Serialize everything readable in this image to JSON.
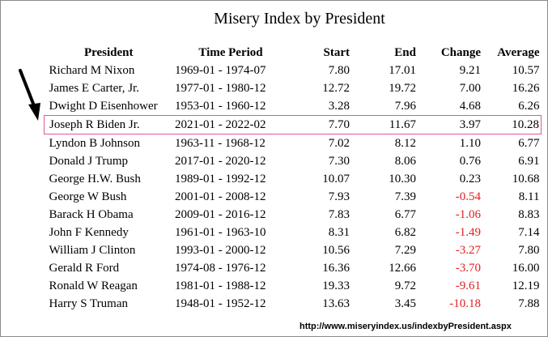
{
  "chart_data": {
    "type": "table",
    "title": "Misery Index by President",
    "columns": [
      "President",
      "Time Period",
      "Start",
      "End",
      "Change",
      "Average"
    ],
    "rows": [
      {
        "president": "Richard M Nixon",
        "period": "1969-01 - 1974-07",
        "start": "7.80",
        "end": "17.01",
        "change": "9.21",
        "average": "10.57"
      },
      {
        "president": "James E Carter, Jr.",
        "period": "1977-01 - 1980-12",
        "start": "12.72",
        "end": "19.72",
        "change": "7.00",
        "average": "16.26"
      },
      {
        "president": "Dwight D Eisenhower",
        "period": "1953-01 - 1960-12",
        "start": "3.28",
        "end": "7.96",
        "change": "4.68",
        "average": "6.26"
      },
      {
        "president": "Joseph R Biden Jr.",
        "period": "2021-01 - 2022-02",
        "start": "7.70",
        "end": "11.67",
        "change": "3.97",
        "average": "10.28"
      },
      {
        "president": "Lyndon B Johnson",
        "period": "1963-11 - 1968-12",
        "start": "7.02",
        "end": "8.12",
        "change": "1.10",
        "average": "6.77"
      },
      {
        "president": "Donald J Trump",
        "period": "2017-01 - 2020-12",
        "start": "7.30",
        "end": "8.06",
        "change": "0.76",
        "average": "6.91"
      },
      {
        "president": "George H.W. Bush",
        "period": "1989-01 - 1992-12",
        "start": "10.07",
        "end": "10.30",
        "change": "0.23",
        "average": "10.68"
      },
      {
        "president": "George W Bush",
        "period": "2001-01 - 2008-12",
        "start": "7.93",
        "end": "7.39",
        "change": "-0.54",
        "average": "8.11"
      },
      {
        "president": "Barack H Obama",
        "period": "2009-01 - 2016-12",
        "start": "7.83",
        "end": "6.77",
        "change": "-1.06",
        "average": "8.83"
      },
      {
        "president": "John F Kennedy",
        "period": "1961-01 - 1963-10",
        "start": "8.31",
        "end": "6.82",
        "change": "-1.49",
        "average": "7.14"
      },
      {
        "president": "William J Clinton",
        "period": "1993-01 - 2000-12",
        "start": "10.56",
        "end": "7.29",
        "change": "-3.27",
        "average": "7.80"
      },
      {
        "president": "Gerald R Ford",
        "period": "1974-08 - 1976-12",
        "start": "16.36",
        "end": "12.66",
        "change": "-3.70",
        "average": "16.00"
      },
      {
        "president": "Ronald W Reagan",
        "period": "1981-01 - 1988-12",
        "start": "19.33",
        "end": "9.72",
        "change": "-9.61",
        "average": "12.19"
      },
      {
        "president": "Harry S Truman",
        "period": "1948-01 - 1952-12",
        "start": "13.63",
        "end": "3.45",
        "change": "-10.18",
        "average": "7.88"
      }
    ],
    "highlighted_row": 3,
    "colors": {
      "negative_change": "#e02020",
      "highlight_border": "#e8559a",
      "text": "#000000"
    }
  },
  "source_url": "http://www.miseryindex.us/indexbyPresident.aspx"
}
